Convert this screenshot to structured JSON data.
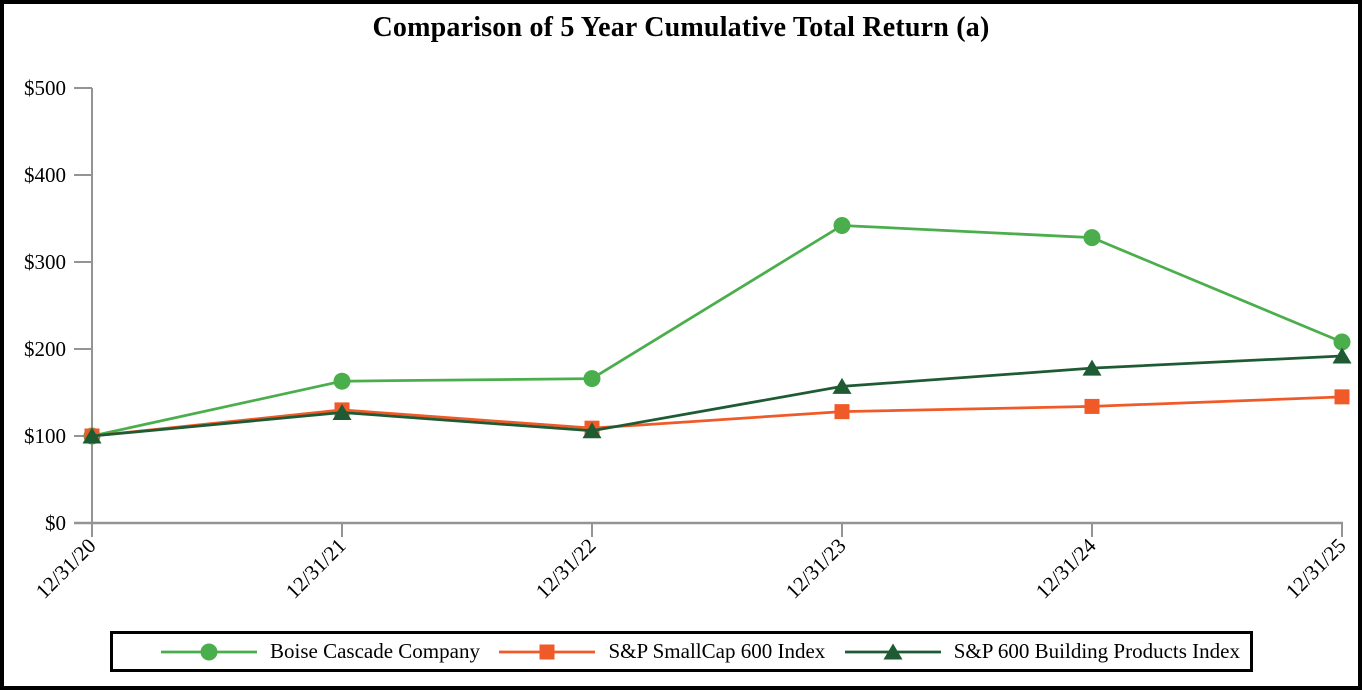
{
  "window": {
    "title": "Comparison of 5 Year Cumulative Total Return (a)"
  },
  "colors": {
    "background": "#ffffff",
    "frame_border": "#000000",
    "axis": "#949494",
    "text": "#000000",
    "boise_green": "#4BAE4C",
    "smallcap_orange": "#F05A28",
    "building_dark_green": "#1E5B33"
  },
  "chart_data": {
    "type": "line",
    "title": "Comparison of 5 Year Cumulative Total Return (a)",
    "xlabel": "",
    "ylabel": "",
    "categories": [
      "12/31/20",
      "12/31/21",
      "12/31/22",
      "12/31/23",
      "12/31/24",
      "12/31/25"
    ],
    "series": [
      {
        "name": "Boise Cascade Company",
        "marker": "circle",
        "color": "#4BAE4C",
        "values": [
          100,
          163,
          166,
          342,
          328,
          208
        ]
      },
      {
        "name": "S&P SmallCap 600 Index",
        "marker": "square",
        "color": "#F05A28",
        "values": [
          100,
          130,
          109,
          128,
          134,
          145
        ]
      },
      {
        "name": "S&P 600 Building Products Index",
        "marker": "triangle",
        "color": "#1E5B33",
        "values": [
          100,
          127,
          106,
          157,
          178,
          192
        ]
      }
    ],
    "y_ticks": [
      {
        "value": 0,
        "label": "$0"
      },
      {
        "value": 100,
        "label": "$100"
      },
      {
        "value": 200,
        "label": "$200"
      },
      {
        "value": 300,
        "label": "$300"
      },
      {
        "value": 400,
        "label": "$400"
      },
      {
        "value": 500,
        "label": "$500"
      }
    ],
    "ylim": [
      0,
      500
    ],
    "grid": false,
    "legend_position": "bottom",
    "x_tick_label_rotation": -45
  }
}
